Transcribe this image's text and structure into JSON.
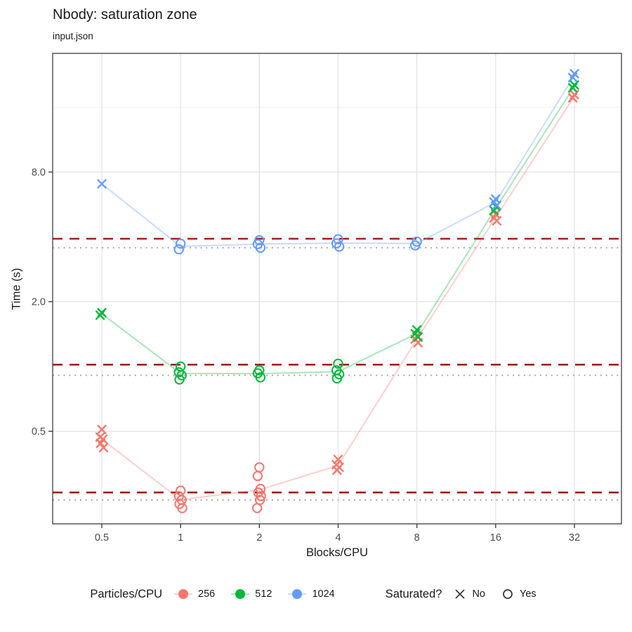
{
  "title": "Nbody: saturation zone",
  "subtitle": "input.json",
  "chart_data": {
    "type": "scatter",
    "title": "Nbody: saturation zone",
    "subtitle": "input.json",
    "xlabel": "Blocks/CPU",
    "ylabel": "Time (s)",
    "x_scale": "log2",
    "y_scale": "log2",
    "x_ticks": [
      0.5,
      1,
      2,
      4,
      8,
      16,
      32
    ],
    "x_tick_labels": [
      "0.5",
      "1",
      "2",
      "4",
      "8",
      "16",
      "32"
    ],
    "y_ticks": [
      0.5,
      2,
      8
    ],
    "y_tick_labels": [
      "0.5",
      "2.0",
      "8.0"
    ],
    "y_minor_gridlines": [
      1,
      4,
      16
    ],
    "xlim": [
      0.33,
      48
    ],
    "ylim": [
      0.185,
      29
    ],
    "grid": true,
    "legend_position": "bottom",
    "series": [
      {
        "name": "256",
        "color": "#F8766D",
        "groups": [
          {
            "x": 0.5,
            "shape": "x",
            "saturated": false,
            "values": [
              0.51,
              0.47,
              0.46,
              0.44,
              0.42
            ]
          },
          {
            "x": 1,
            "shape": "o",
            "saturated": true,
            "values": [
              0.265,
              0.25,
              0.24,
              0.23,
              0.22
            ]
          },
          {
            "x": 2,
            "shape": "o",
            "saturated": true,
            "values": [
              0.34,
              0.31,
              0.27,
              0.26,
              0.25,
              0.24,
              0.22
            ]
          },
          {
            "x": 4,
            "shape": "x",
            "saturated": false,
            "values": [
              0.37,
              0.35,
              0.34,
              0.33
            ]
          },
          {
            "x": 8,
            "shape": "x",
            "saturated": false,
            "values": [
              1.39,
              1.34,
              1.29
            ]
          },
          {
            "x": 16,
            "shape": "x",
            "saturated": false,
            "values": [
              5.1,
              4.9,
              4.75
            ]
          },
          {
            "x": 32,
            "shape": "x",
            "saturated": false,
            "values": [
              18.3,
              17.7
            ]
          }
        ]
      },
      {
        "name": "512",
        "color": "#00BA38",
        "groups": [
          {
            "x": 0.5,
            "shape": "x",
            "saturated": false,
            "values": [
              1.78,
              1.73
            ]
          },
          {
            "x": 1,
            "shape": "o",
            "saturated": true,
            "values": [
              1.0,
              0.94,
              0.91,
              0.87
            ]
          },
          {
            "x": 2,
            "shape": "o",
            "saturated": true,
            "values": [
              0.96,
              0.93,
              0.89
            ]
          },
          {
            "x": 4,
            "shape": "o",
            "saturated": true,
            "values": [
              1.03,
              0.96,
              0.92,
              0.88
            ]
          },
          {
            "x": 8,
            "shape": "x",
            "saturated": false,
            "values": [
              1.48,
              1.42,
              1.37
            ]
          },
          {
            "x": 16,
            "shape": "x",
            "saturated": false,
            "values": [
              5.55,
              5.3
            ]
          },
          {
            "x": 32,
            "shape": "x",
            "saturated": false,
            "values": [
              20.3,
              19.7
            ]
          }
        ]
      },
      {
        "name": "1024",
        "color": "#619CFF",
        "groups": [
          {
            "x": 0.5,
            "shape": "x",
            "saturated": false,
            "values": [
              7.05
            ]
          },
          {
            "x": 1,
            "shape": "o",
            "saturated": true,
            "values": [
              3.72,
              3.5
            ]
          },
          {
            "x": 2,
            "shape": "o",
            "saturated": true,
            "values": [
              3.86,
              3.7,
              3.56
            ]
          },
          {
            "x": 4,
            "shape": "o",
            "saturated": true,
            "values": [
              3.9,
              3.73,
              3.6
            ]
          },
          {
            "x": 8,
            "shape": "o",
            "saturated": true,
            "values": [
              3.8,
              3.65
            ]
          },
          {
            "x": 16,
            "shape": "x",
            "saturated": false,
            "values": [
              6.0,
              5.8,
              5.6
            ]
          },
          {
            "x": 32,
            "shape": "x",
            "saturated": false,
            "values": [
              22.9,
              22.0
            ]
          }
        ]
      }
    ],
    "saturation_lines": {
      "dashed": {
        "color": "#A02020",
        "style": "dashed",
        "values": [
          3.92,
          1.02,
          0.26
        ]
      },
      "dotted": {
        "color": "#9E9E9E",
        "style": "dotted",
        "values": [
          3.56,
          0.91,
          0.24
        ]
      }
    },
    "legend": {
      "color": {
        "title": "Particles/CPU",
        "entries": [
          {
            "label": "256",
            "color": "#F8766D"
          },
          {
            "label": "512",
            "color": "#00BA38"
          },
          {
            "label": "1024",
            "color": "#619CFF"
          }
        ]
      },
      "shape": {
        "title": "Saturated?",
        "entries": [
          {
            "label": "No",
            "shape": "x"
          },
          {
            "label": "Yes",
            "shape": "circle"
          }
        ]
      }
    }
  }
}
